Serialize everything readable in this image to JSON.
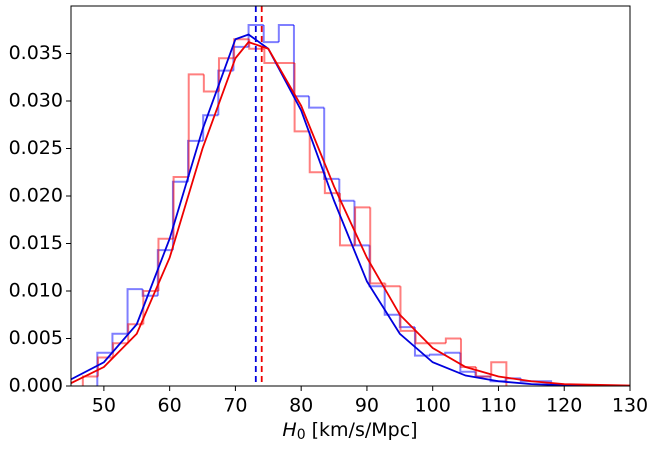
{
  "chart_data": {
    "type": "histogram",
    "xlabel": {
      "symbol": "H",
      "subscript": "0",
      "unit": "[km/s/Mpc]"
    },
    "xlim": [
      45,
      130
    ],
    "ylim": [
      0,
      0.04
    ],
    "xticks": [
      50,
      60,
      70,
      80,
      90,
      100,
      110,
      120,
      130
    ],
    "yticks": [
      {
        "value": 0,
        "label": "0.000"
      },
      {
        "value": 0.005,
        "label": "0.005"
      },
      {
        "value": 0.01,
        "label": "0.010"
      },
      {
        "value": 0.015,
        "label": "0.015"
      },
      {
        "value": 0.02,
        "label": "0.020"
      },
      {
        "value": 0.025,
        "label": "0.025"
      },
      {
        "value": 0.03,
        "label": "0.030"
      },
      {
        "value": 0.035,
        "label": "0.035"
      }
    ],
    "series": [
      {
        "color": "#0000ff",
        "alpha": 0.5,
        "bins": [
          49.0,
          51.3,
          53.6,
          55.9,
          58.2,
          60.5,
          62.8,
          65.1,
          67.4,
          69.7,
          72.0,
          74.3,
          76.6,
          78.9,
          81.2,
          83.5,
          85.8,
          88.1,
          90.4,
          92.7,
          95.0,
          97.3,
          99.6,
          101.9,
          104.2,
          106.5,
          108.8,
          111.1,
          113.4,
          115.7,
          118.0
        ],
        "values": [
          0.0035,
          0.0055,
          0.0102,
          0.0095,
          0.0143,
          0.0215,
          0.0258,
          0.0285,
          0.0332,
          0.0357,
          0.038,
          0.0362,
          0.038,
          0.0305,
          0.0293,
          0.0218,
          0.0195,
          0.0148,
          0.0105,
          0.0075,
          0.0062,
          0.0032,
          0.0033,
          0.0035,
          0.0015,
          0.001,
          0.0005,
          0.0008,
          0.0005,
          0.0005
        ]
      },
      {
        "color": "#ff0000",
        "alpha": 0.5,
        "bins": [
          46.8,
          49.1,
          51.4,
          53.7,
          56.0,
          58.3,
          60.6,
          62.9,
          65.2,
          67.5,
          69.8,
          72.1,
          74.4,
          76.7,
          79.0,
          81.3,
          83.6,
          85.9,
          88.2,
          90.5,
          92.8,
          95.1,
          97.4,
          99.7,
          102.0,
          104.3,
          106.6,
          108.9,
          111.2
        ],
        "values": [
          0.001,
          0.003,
          0.0045,
          0.0065,
          0.01,
          0.0155,
          0.022,
          0.0328,
          0.031,
          0.0345,
          0.0365,
          0.0355,
          0.034,
          0.034,
          0.0268,
          0.0225,
          0.0203,
          0.0148,
          0.0188,
          0.0108,
          0.0105,
          0.0058,
          0.0045,
          0.0045,
          0.005,
          0.002,
          0.001,
          0.0025
        ]
      }
    ],
    "curves": [
      {
        "color": "#0000dd",
        "x": [
          45,
          50,
          55,
          60,
          65,
          70,
          72,
          75,
          80,
          85,
          90,
          95,
          100,
          105,
          110,
          115,
          120,
          130
        ],
        "values": [
          0.0007,
          0.0025,
          0.0065,
          0.0155,
          0.027,
          0.0365,
          0.037,
          0.0355,
          0.029,
          0.0195,
          0.011,
          0.0055,
          0.0025,
          0.0011,
          0.0005,
          0.0002,
          0.0001,
          0
        ]
      },
      {
        "color": "#ee0000",
        "x": [
          45,
          50,
          55,
          60,
          65,
          70,
          72,
          75,
          80,
          85,
          90,
          95,
          100,
          105,
          110,
          115,
          120,
          130
        ],
        "values": [
          0.0003,
          0.002,
          0.0055,
          0.0135,
          0.025,
          0.0345,
          0.0362,
          0.0355,
          0.0295,
          0.021,
          0.0135,
          0.0075,
          0.004,
          0.002,
          0.001,
          0.0005,
          0.0002,
          5e-05
        ]
      }
    ],
    "vlines": [
      {
        "color": "#0000dd",
        "x": 73.1
      },
      {
        "color": "#ee0000",
        "x": 74.0
      }
    ]
  }
}
